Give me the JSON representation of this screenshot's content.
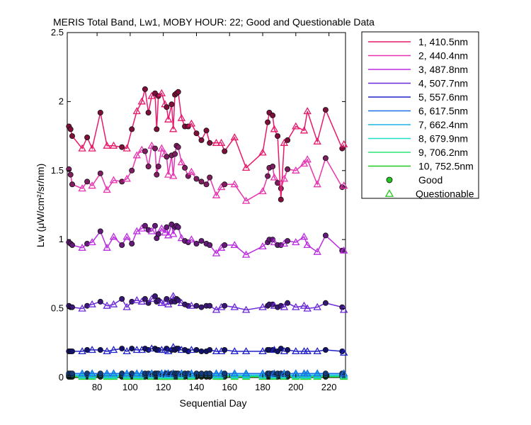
{
  "chart_data": {
    "type": "line",
    "title": "MERIS Total Band,  Lw1, MOBY HOUR: 22;  Good and Questionable Data",
    "xlabel": "Sequential Day",
    "ylabel": "Lw (μW/cm²/sr/nm)",
    "xlim": [
      62,
      230
    ],
    "ylim": [
      0,
      2.5
    ],
    "xticks": [
      80,
      100,
      120,
      140,
      160,
      180,
      200,
      220
    ],
    "yticks": [
      0,
      0.5,
      1,
      1.5,
      2,
      2.5
    ],
    "ytick_labels": [
      "0",
      "0.5",
      "1",
      "1.5",
      "2",
      "2.5"
    ],
    "grid": false,
    "legend_position": "outside-right",
    "x": [
      63,
      64,
      65,
      71,
      74,
      77,
      82,
      86,
      90,
      95,
      98,
      101,
      104,
      107,
      109,
      111,
      113,
      115,
      116,
      117,
      119,
      121,
      122,
      123,
      125,
      126,
      127,
      128,
      129,
      131,
      133,
      135,
      137,
      140,
      143,
      146,
      148,
      152,
      155,
      157,
      163,
      170,
      180,
      183,
      184,
      186,
      187,
      189,
      191,
      193,
      195,
      200,
      205,
      207,
      213,
      218,
      228,
      229
    ],
    "flags": [
      "g",
      "g",
      "g",
      "q",
      "g",
      "q",
      "g",
      "q",
      "q",
      "g",
      "q",
      "g",
      "q",
      "q",
      "g",
      "g",
      "q",
      "g",
      "g",
      "g",
      "q",
      "q",
      "g",
      "q",
      "g",
      "q",
      "g",
      "g",
      "g",
      "q",
      "g",
      "g",
      "q",
      "g",
      "g",
      "g",
      "g",
      "q",
      "q",
      "g",
      "q",
      "q",
      "q",
      "g",
      "g",
      "g",
      "q",
      "g",
      "g",
      "q",
      "g",
      "q",
      "q",
      "q",
      "q",
      "g",
      "g",
      "q"
    ],
    "series": [
      {
        "name": "1, 410.5nm",
        "color": "#e8196b",
        "values": [
          1.82,
          1.8,
          1.75,
          1.66,
          1.74,
          1.66,
          1.92,
          1.68,
          1.68,
          1.67,
          1.66,
          1.8,
          1.93,
          2.0,
          2.09,
          1.92,
          2.04,
          2.06,
          1.8,
          2.04,
          2.06,
          1.98,
          1.96,
          1.87,
          1.98,
          1.8,
          2.05,
          2.06,
          2.07,
          1.88,
          1.82,
          1.82,
          1.84,
          1.77,
          1.72,
          1.79,
          1.7,
          1.7,
          1.7,
          1.64,
          1.74,
          1.52,
          1.63,
          1.85,
          1.92,
          1.9,
          1.8,
          1.75,
          1.29,
          1.7,
          1.72,
          1.82,
          1.79,
          1.93,
          1.71,
          1.94,
          1.66,
          1.69
        ]
      },
      {
        "name": "2, 440.4nm",
        "color": "#e834b0",
        "values": [
          1.51,
          1.47,
          1.4,
          1.37,
          1.42,
          1.39,
          1.48,
          1.36,
          1.43,
          1.42,
          1.44,
          1.5,
          1.61,
          1.65,
          1.64,
          1.53,
          1.68,
          1.66,
          1.47,
          1.53,
          1.66,
          1.62,
          1.6,
          1.47,
          1.61,
          1.46,
          1.62,
          1.68,
          1.67,
          1.56,
          1.52,
          1.46,
          1.49,
          1.44,
          1.42,
          1.4,
          1.45,
          1.32,
          1.38,
          1.4,
          1.4,
          1.28,
          1.35,
          1.46,
          1.52,
          1.53,
          1.45,
          1.41,
          1.37,
          1.44,
          1.51,
          1.5,
          1.55,
          1.58,
          1.4,
          1.59,
          1.38,
          1.39
        ]
      },
      {
        "name": "3, 487.8nm",
        "color": "#bb2ce0",
        "values": [
          0.98,
          0.97,
          0.96,
          0.94,
          0.97,
          0.98,
          1.06,
          0.94,
          1.02,
          0.96,
          1.02,
          0.97,
          1.06,
          1.08,
          1.1,
          1.07,
          1.06,
          1.1,
          1.01,
          1.04,
          1.08,
          1.05,
          1.09,
          1.03,
          1.11,
          1.04,
          1.09,
          1.1,
          1.09,
          1.01,
          0.99,
          0.98,
          1.0,
          0.97,
          0.99,
          0.97,
          0.96,
          0.9,
          0.94,
          0.96,
          0.96,
          0.89,
          0.95,
          0.98,
          1.0,
          1.0,
          0.98,
          0.96,
          0.96,
          0.97,
          0.99,
          0.98,
          1.02,
          0.96,
          0.91,
          1.03,
          0.92,
          0.92
        ]
      },
      {
        "name": "4, 507.7nm",
        "color": "#6a28d8",
        "values": [
          0.52,
          0.51,
          0.51,
          0.5,
          0.52,
          0.53,
          0.55,
          0.52,
          0.53,
          0.57,
          0.51,
          0.55,
          0.56,
          0.55,
          0.57,
          0.54,
          0.57,
          0.59,
          0.55,
          0.56,
          0.54,
          0.55,
          0.57,
          0.53,
          0.55,
          0.59,
          0.55,
          0.57,
          0.56,
          0.54,
          0.53,
          0.52,
          0.52,
          0.52,
          0.51,
          0.52,
          0.52,
          0.49,
          0.51,
          0.52,
          0.51,
          0.49,
          0.51,
          0.52,
          0.53,
          0.53,
          0.52,
          0.51,
          0.52,
          0.51,
          0.54,
          0.51,
          0.52,
          0.5,
          0.51,
          0.54,
          0.51,
          0.49
        ]
      },
      {
        "name": "5, 557.6nm",
        "color": "#2020c8",
        "values": [
          0.19,
          0.19,
          0.19,
          0.19,
          0.2,
          0.2,
          0.2,
          0.19,
          0.2,
          0.21,
          0.19,
          0.21,
          0.2,
          0.2,
          0.21,
          0.2,
          0.21,
          0.21,
          0.2,
          0.2,
          0.2,
          0.2,
          0.21,
          0.19,
          0.2,
          0.22,
          0.2,
          0.21,
          0.21,
          0.2,
          0.2,
          0.19,
          0.2,
          0.2,
          0.19,
          0.19,
          0.2,
          0.19,
          0.19,
          0.2,
          0.19,
          0.19,
          0.19,
          0.2,
          0.2,
          0.2,
          0.2,
          0.19,
          0.21,
          0.19,
          0.2,
          0.19,
          0.19,
          0.19,
          0.19,
          0.2,
          0.19,
          0.18
        ]
      },
      {
        "name": "6, 617.5nm",
        "color": "#1e6ee8",
        "values": [
          0.03,
          0.03,
          0.03,
          0.03,
          0.03,
          0.03,
          0.03,
          0.03,
          0.03,
          0.03,
          0.03,
          0.03,
          0.03,
          0.03,
          0.03,
          0.03,
          0.03,
          0.03,
          0.03,
          0.03,
          0.03,
          0.03,
          0.03,
          0.03,
          0.03,
          0.03,
          0.03,
          0.03,
          0.03,
          0.03,
          0.03,
          0.03,
          0.03,
          0.03,
          0.03,
          0.03,
          0.03,
          0.03,
          0.03,
          0.03,
          0.03,
          0.03,
          0.03,
          0.03,
          0.03,
          0.03,
          0.03,
          0.03,
          0.03,
          0.03,
          0.03,
          0.03,
          0.03,
          0.03,
          0.03,
          0.03,
          0.03,
          0.03
        ]
      },
      {
        "name": "7, 662.4nm",
        "color": "#1cb4e8",
        "values": [
          0.02,
          0.02,
          0.02,
          0.02,
          0.02,
          0.02,
          0.02,
          0.02,
          0.02,
          0.02,
          0.02,
          0.02,
          0.02,
          0.02,
          0.02,
          0.02,
          0.02,
          0.02,
          0.02,
          0.02,
          0.02,
          0.02,
          0.02,
          0.02,
          0.02,
          0.02,
          0.02,
          0.02,
          0.02,
          0.02,
          0.02,
          0.02,
          0.02,
          0.02,
          0.02,
          0.02,
          0.02,
          0.02,
          0.02,
          0.02,
          0.02,
          0.02,
          0.02,
          0.02,
          0.02,
          0.02,
          0.02,
          0.02,
          0.02,
          0.02,
          0.02,
          0.02,
          0.02,
          0.02,
          0.02,
          0.02,
          0.02,
          0.02
        ]
      },
      {
        "name": "8, 679.9nm",
        "color": "#1ee0c8",
        "values": [
          0.015,
          0.015,
          0.015,
          0.015,
          0.015,
          0.015,
          0.015,
          0.015,
          0.015,
          0.015,
          0.015,
          0.015,
          0.015,
          0.015,
          0.015,
          0.015,
          0.015,
          0.015,
          0.015,
          0.015,
          0.015,
          0.015,
          0.015,
          0.015,
          0.015,
          0.015,
          0.015,
          0.015,
          0.015,
          0.015,
          0.015,
          0.015,
          0.015,
          0.015,
          0.015,
          0.015,
          0.015,
          0.015,
          0.015,
          0.015,
          0.015,
          0.015,
          0.015,
          0.015,
          0.015,
          0.015,
          0.015,
          0.015,
          0.015,
          0.015,
          0.015,
          0.015,
          0.015,
          0.015,
          0.015,
          0.015,
          0.015,
          0.015
        ]
      },
      {
        "name": "9, 706.2nm",
        "color": "#2ee678",
        "values": [
          0.01,
          0.01,
          0.01,
          0.01,
          0.01,
          0.01,
          0.01,
          0.01,
          0.01,
          0.01,
          0.01,
          0.01,
          0.01,
          0.01,
          0.01,
          0.01,
          0.01,
          0.01,
          0.01,
          0.01,
          0.01,
          0.01,
          0.01,
          0.01,
          0.01,
          0.01,
          0.01,
          0.01,
          0.01,
          0.01,
          0.01,
          0.01,
          0.01,
          0.01,
          0.01,
          0.01,
          0.01,
          0.01,
          0.01,
          0.01,
          0.01,
          0.01,
          0.01,
          0.01,
          0.01,
          0.01,
          0.01,
          0.01,
          0.01,
          0.01,
          0.01,
          0.01,
          0.01,
          0.01,
          0.01,
          0.01,
          0.01,
          0.01
        ]
      },
      {
        "name": "10, 752.5nm",
        "color": "#22c81e",
        "values": [
          0.005,
          0.005,
          0.005,
          0.005,
          0.005,
          0.005,
          0.005,
          0.005,
          0.005,
          0.005,
          0.005,
          0.005,
          0.005,
          0.005,
          0.005,
          0.005,
          0.005,
          0.005,
          0.005,
          0.005,
          0.005,
          0.005,
          0.005,
          0.005,
          0.005,
          0.005,
          0.005,
          0.005,
          0.005,
          0.005,
          0.005,
          0.005,
          0.005,
          0.005,
          0.005,
          0.005,
          0.005,
          0.005,
          0.005,
          0.005,
          0.005,
          0.005,
          0.005,
          0.005,
          0.005,
          0.005,
          0.005,
          0.005,
          0.005,
          0.005,
          0.005,
          0.005,
          0.005,
          0.005,
          0.005,
          0.005,
          0.005,
          0.005
        ]
      }
    ],
    "legend": {
      "good_label": "Good",
      "questionable_label": "Questionable",
      "good_marker_color": "#22c81e",
      "questionable_marker_color": "#22c81e"
    }
  }
}
